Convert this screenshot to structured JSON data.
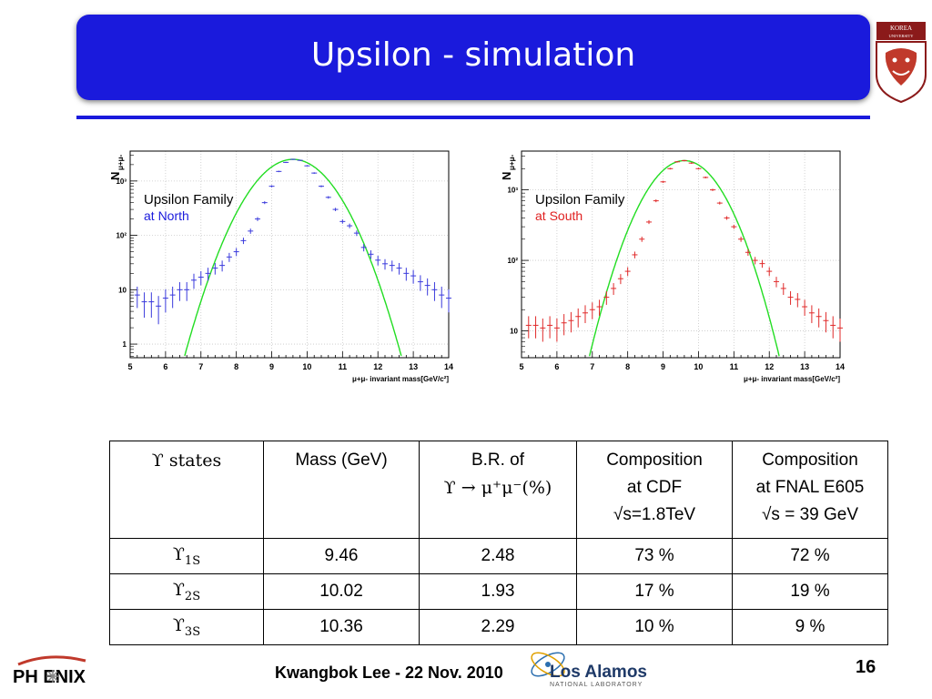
{
  "slide": {
    "title": "Upsilon - simulation",
    "footer_author": "Kwangbok Lee - 22 Nov. 2010",
    "page_number": "16",
    "logos": {
      "university": "KOREA UNIVERSITY",
      "experiment": "PH ENIX",
      "lab_name": "Los Alamos",
      "lab_sub": "NATIONAL LABORATORY"
    }
  },
  "chart_data": [
    {
      "type": "scatter",
      "legend_title": "Upsilon Family",
      "legend_sub": "at North",
      "ylabel_main": "N",
      "ylabel_sub": "μ+μ-",
      "xlabel": "μ+μ- invariant mass[GeV/c²]",
      "xlim": [
        5,
        14
      ],
      "ylim_log10": [
        -0.25,
        3.55
      ],
      "xticks": [
        "5",
        "6",
        "7",
        "8",
        "9",
        "10",
        "11",
        "12",
        "13",
        "14"
      ],
      "yticks": [
        {
          "label": "1",
          "value": 1
        },
        {
          "label": "10",
          "value": 10
        },
        {
          "label": "10²",
          "value": 100
        },
        {
          "label": "10³",
          "value": 1000
        }
      ],
      "log_y": true,
      "grid": true,
      "colors": {
        "points": "#3a3adc",
        "fit": "#22dd22",
        "legend_sub": "#1a1adc",
        "legend_main": "#000000"
      },
      "points_x": [
        5.2,
        5.4,
        5.6,
        5.8,
        6.0,
        6.2,
        6.4,
        6.6,
        6.8,
        7.0,
        7.2,
        7.4,
        7.6,
        7.8,
        8.0,
        8.2,
        8.4,
        8.6,
        8.8,
        9.0,
        9.2,
        9.4,
        9.6,
        9.8,
        10.0,
        10.2,
        10.4,
        10.6,
        10.8,
        11.0,
        11.2,
        11.4,
        11.6,
        11.8,
        12.0,
        12.2,
        12.4,
        12.6,
        12.8,
        13.0,
        13.2,
        13.4,
        13.6,
        13.8,
        14.0
      ],
      "points_y": [
        8,
        6,
        6,
        5,
        7,
        8,
        10,
        10,
        15,
        17,
        20,
        25,
        28,
        40,
        50,
        80,
        120,
        200,
        400,
        800,
        1500,
        2200,
        2500,
        2400,
        1900,
        1400,
        800,
        500,
        300,
        180,
        150,
        110,
        60,
        45,
        35,
        30,
        28,
        25,
        20,
        18,
        14,
        12,
        10,
        8,
        7
      ],
      "fit": {
        "peak_x": 9.6,
        "peak_y": 2500,
        "sigma": 0.75
      }
    },
    {
      "type": "scatter",
      "legend_title": "Upsilon Family",
      "legend_sub": "at South",
      "ylabel_main": "N",
      "ylabel_sub": "μ+μ-",
      "xlabel": "μ+μ- invariant mass[GeV/c²]",
      "xlim": [
        5,
        14
      ],
      "ylim_log10": [
        0.62,
        3.55
      ],
      "xticks": [
        "5",
        "6",
        "7",
        "8",
        "9",
        "10",
        "11",
        "12",
        "13",
        "14"
      ],
      "yticks": [
        {
          "label": "10",
          "value": 10
        },
        {
          "label": "10²",
          "value": 100
        },
        {
          "label": "10³",
          "value": 1000
        }
      ],
      "log_y": true,
      "grid": true,
      "colors": {
        "points": "#e02a2a",
        "fit": "#22dd22",
        "legend_sub": "#e02020",
        "legend_main": "#000000"
      },
      "points_x": [
        5.2,
        5.4,
        5.6,
        5.8,
        6.0,
        6.2,
        6.4,
        6.6,
        6.8,
        7.0,
        7.2,
        7.4,
        7.6,
        7.8,
        8.0,
        8.2,
        8.4,
        8.6,
        8.8,
        9.0,
        9.2,
        9.4,
        9.6,
        9.8,
        10.0,
        10.2,
        10.4,
        10.6,
        10.8,
        11.0,
        11.2,
        11.4,
        11.6,
        11.8,
        12.0,
        12.2,
        12.4,
        12.6,
        12.8,
        13.0,
        13.2,
        13.4,
        13.6,
        13.8,
        14.0
      ],
      "points_y": [
        12,
        12,
        11,
        12,
        11,
        13,
        14,
        16,
        18,
        20,
        22,
        30,
        40,
        55,
        70,
        120,
        200,
        350,
        700,
        1300,
        2000,
        2500,
        2600,
        2400,
        2000,
        1500,
        1000,
        650,
        400,
        300,
        200,
        130,
        100,
        90,
        70,
        50,
        40,
        30,
        28,
        22,
        18,
        16,
        14,
        12,
        11
      ],
      "fit": {
        "peak_x": 9.6,
        "peak_y": 2600,
        "sigma": 0.75
      }
    }
  ],
  "table": {
    "headers": [
      {
        "lines": [
          "ϒ states"
        ],
        "serif": true
      },
      {
        "lines": [
          "Mass (GeV)"
        ]
      },
      {
        "lines": [
          "B.R. of",
          "ϒ → μ⁺μ⁻(%)"
        ]
      },
      {
        "lines": [
          "Composition",
          "at CDF",
          "√s=1.8TeV"
        ]
      },
      {
        "lines": [
          "Composition",
          "at FNAL E605",
          "√s = 39 GeV"
        ]
      }
    ],
    "rows": [
      {
        "state": "ϒ",
        "sub": "1S",
        "mass": "9.46",
        "br": "2.48",
        "cdf": "73 %",
        "fnal": "72 %"
      },
      {
        "state": "ϒ",
        "sub": "2S",
        "mass": "10.02",
        "br": "1.93",
        "cdf": "17 %",
        "fnal": "19 %"
      },
      {
        "state": "ϒ",
        "sub": "3S",
        "mass": "10.36",
        "br": "2.29",
        "cdf": "10 %",
        "fnal": "9 %"
      }
    ]
  }
}
